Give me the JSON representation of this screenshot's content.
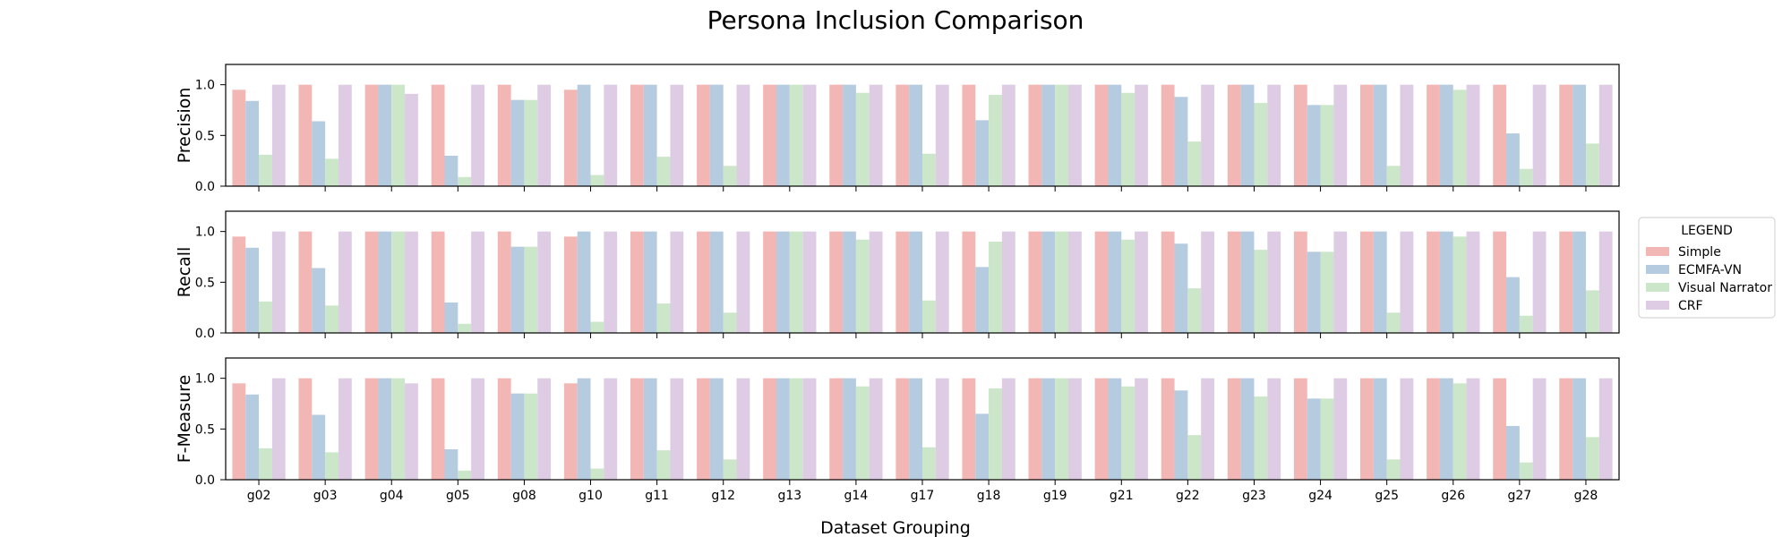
{
  "figure": {
    "title": "Persona Inclusion Comparison",
    "xlabel": "Dataset Grouping"
  },
  "legend": {
    "title": "LEGEND",
    "placement": "right"
  },
  "series_colors": {
    "Simple": "#f2b6b4",
    "ECMFA-VN": "#b4cbe0",
    "Visual Narrator": "#cce6c9",
    "CRF": "#ddcce3"
  },
  "chart_data": [
    {
      "type": "bar",
      "ylabel": "Precision",
      "ylim": [
        0,
        1.2
      ],
      "yticks": [
        "0.0",
        "0.5",
        "1.0"
      ],
      "grid": false,
      "categories": [
        "g02",
        "g03",
        "g04",
        "g05",
        "g08",
        "g10",
        "g11",
        "g12",
        "g13",
        "g14",
        "g17",
        "g18",
        "g19",
        "g21",
        "g22",
        "g23",
        "g24",
        "g25",
        "g26",
        "g27",
        "g28"
      ],
      "series": [
        {
          "name": "Simple",
          "values": [
            0.95,
            1.0,
            1.0,
            1.0,
            1.0,
            0.95,
            1.0,
            1.0,
            1.0,
            1.0,
            1.0,
            1.0,
            1.0,
            1.0,
            1.0,
            1.0,
            1.0,
            1.0,
            1.0,
            1.0,
            1.0
          ]
        },
        {
          "name": "ECMFA-VN",
          "values": [
            0.84,
            0.64,
            1.0,
            0.3,
            0.85,
            1.0,
            1.0,
            1.0,
            1.0,
            1.0,
            1.0,
            0.65,
            1.0,
            1.0,
            0.88,
            1.0,
            0.8,
            1.0,
            1.0,
            0.52,
            1.0
          ]
        },
        {
          "name": "Visual Narrator",
          "values": [
            0.31,
            0.27,
            1.0,
            0.09,
            0.85,
            0.11,
            0.29,
            0.2,
            1.0,
            0.92,
            0.32,
            0.9,
            1.0,
            0.92,
            0.44,
            0.82,
            0.8,
            0.2,
            0.95,
            0.17,
            0.42
          ]
        },
        {
          "name": "CRF",
          "values": [
            1.0,
            1.0,
            0.91,
            1.0,
            1.0,
            1.0,
            1.0,
            1.0,
            1.0,
            1.0,
            1.0,
            1.0,
            1.0,
            1.0,
            1.0,
            1.0,
            1.0,
            1.0,
            1.0,
            1.0,
            1.0
          ]
        }
      ]
    },
    {
      "type": "bar",
      "ylabel": "Recall",
      "ylim": [
        0,
        1.2
      ],
      "yticks": [
        "0.0",
        "0.5",
        "1.0"
      ],
      "grid": false,
      "categories": [
        "g02",
        "g03",
        "g04",
        "g05",
        "g08",
        "g10",
        "g11",
        "g12",
        "g13",
        "g14",
        "g17",
        "g18",
        "g19",
        "g21",
        "g22",
        "g23",
        "g24",
        "g25",
        "g26",
        "g27",
        "g28"
      ],
      "series": [
        {
          "name": "Simple",
          "values": [
            0.95,
            1.0,
            1.0,
            1.0,
            1.0,
            0.95,
            1.0,
            1.0,
            1.0,
            1.0,
            1.0,
            1.0,
            1.0,
            1.0,
            1.0,
            1.0,
            1.0,
            1.0,
            1.0,
            1.0,
            1.0
          ]
        },
        {
          "name": "ECMFA-VN",
          "values": [
            0.84,
            0.64,
            1.0,
            0.3,
            0.85,
            1.0,
            1.0,
            1.0,
            1.0,
            1.0,
            1.0,
            0.65,
            1.0,
            1.0,
            0.88,
            1.0,
            0.8,
            1.0,
            1.0,
            0.55,
            1.0
          ]
        },
        {
          "name": "Visual Narrator",
          "values": [
            0.31,
            0.27,
            1.0,
            0.09,
            0.85,
            0.11,
            0.29,
            0.2,
            1.0,
            0.92,
            0.32,
            0.9,
            1.0,
            0.92,
            0.44,
            0.82,
            0.8,
            0.2,
            0.95,
            0.17,
            0.42
          ]
        },
        {
          "name": "CRF",
          "values": [
            1.0,
            1.0,
            1.0,
            1.0,
            1.0,
            1.0,
            1.0,
            1.0,
            1.0,
            1.0,
            1.0,
            1.0,
            1.0,
            1.0,
            1.0,
            1.0,
            1.0,
            1.0,
            1.0,
            1.0,
            1.0
          ]
        }
      ]
    },
    {
      "type": "bar",
      "ylabel": "F-Measure",
      "ylim": [
        0,
        1.2
      ],
      "yticks": [
        "0.0",
        "0.5",
        "1.0"
      ],
      "grid": false,
      "categories": [
        "g02",
        "g03",
        "g04",
        "g05",
        "g08",
        "g10",
        "g11",
        "g12",
        "g13",
        "g14",
        "g17",
        "g18",
        "g19",
        "g21",
        "g22",
        "g23",
        "g24",
        "g25",
        "g26",
        "g27",
        "g28"
      ],
      "series": [
        {
          "name": "Simple",
          "values": [
            0.95,
            1.0,
            1.0,
            1.0,
            1.0,
            0.95,
            1.0,
            1.0,
            1.0,
            1.0,
            1.0,
            1.0,
            1.0,
            1.0,
            1.0,
            1.0,
            1.0,
            1.0,
            1.0,
            1.0,
            1.0
          ]
        },
        {
          "name": "ECMFA-VN",
          "values": [
            0.84,
            0.64,
            1.0,
            0.3,
            0.85,
            1.0,
            1.0,
            1.0,
            1.0,
            1.0,
            1.0,
            0.65,
            1.0,
            1.0,
            0.88,
            1.0,
            0.8,
            1.0,
            1.0,
            0.53,
            1.0
          ]
        },
        {
          "name": "Visual Narrator",
          "values": [
            0.31,
            0.27,
            1.0,
            0.09,
            0.85,
            0.11,
            0.29,
            0.2,
            1.0,
            0.92,
            0.32,
            0.9,
            1.0,
            0.92,
            0.44,
            0.82,
            0.8,
            0.2,
            0.95,
            0.17,
            0.42
          ]
        },
        {
          "name": "CRF",
          "values": [
            1.0,
            1.0,
            0.95,
            1.0,
            1.0,
            1.0,
            1.0,
            1.0,
            1.0,
            1.0,
            1.0,
            1.0,
            1.0,
            1.0,
            1.0,
            1.0,
            1.0,
            1.0,
            1.0,
            1.0,
            1.0
          ]
        }
      ]
    }
  ]
}
